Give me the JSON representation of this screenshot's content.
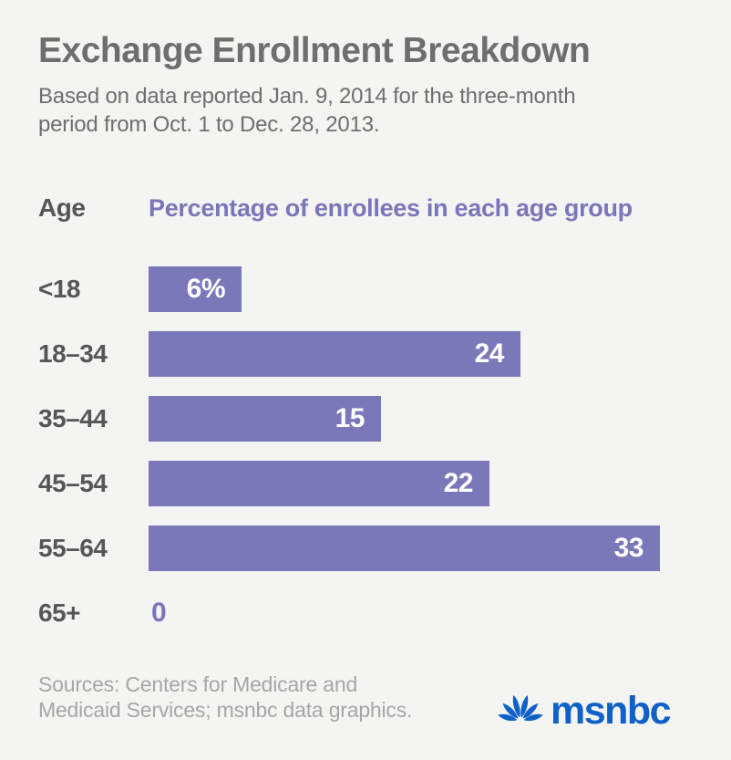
{
  "title": "Exchange Enrollment Breakdown",
  "subtitle_line1": "Based on data reported Jan. 9, 2014 for the three-month",
  "subtitle_line2": "period from Oct. 1 to Dec. 28, 2013.",
  "header": {
    "age_label": "Age",
    "value_label": "Percentage of enrollees in each age group"
  },
  "chart_data": {
    "type": "bar",
    "orientation": "horizontal",
    "title": "Exchange Enrollment Breakdown",
    "xlabel": "Percentage of enrollees in each age group",
    "ylabel": "Age",
    "categories": [
      "<18",
      "18–34",
      "35–44",
      "45–54",
      "55–64",
      "65+"
    ],
    "values": [
      6,
      24,
      15,
      22,
      33,
      0
    ],
    "value_labels": [
      "6%",
      "24",
      "15",
      "22",
      "33",
      "0"
    ],
    "xlim": [
      0,
      35
    ],
    "grid": false,
    "legend": false,
    "value_label_position": "inside-right"
  },
  "footer": {
    "sources_line1": "Sources: Centers for Medicare and",
    "sources_line2": "Medicaid Services; msnbc data graphics.",
    "brand": "msnbc"
  },
  "colors": {
    "background": "#f4f4f3",
    "bar": "#7b78b9",
    "bar_value_text": "#ffffff",
    "accent_purple": "#7a76b9",
    "title_gray": "#6e6e6e",
    "label_gray": "#565658",
    "sources_gray": "#a6a6a6",
    "brand_blue": "#1061c7"
  },
  "icons": {
    "peacock": "peacock-icon"
  }
}
